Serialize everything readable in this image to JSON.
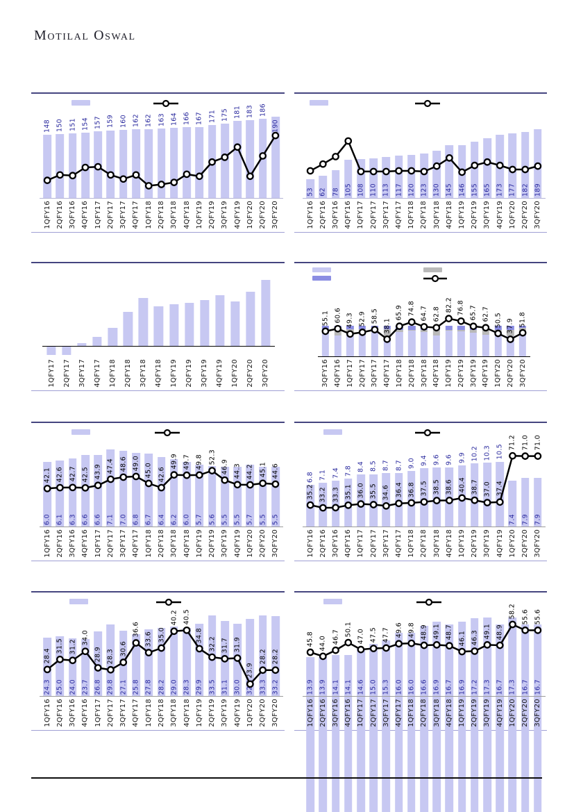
{
  "brand": {
    "title": "Motilal Oswal"
  },
  "colors": {
    "bar_light": "#c7c8f2",
    "bar_dark": "#8b8de3",
    "bar_gray": "#b9b9b9",
    "line": "#000000",
    "bar_label": "#2a2a9e",
    "line_label": "#000000",
    "panel_border_top": "#45457f",
    "panel_border_bottom": "#9f9fd4"
  },
  "chart_data": [
    {
      "type": "bar",
      "position": "row1-left",
      "categories": [
        "1QFY16",
        "2QFY16",
        "3QFY16",
        "4QFY16",
        "1QFY17",
        "2QFY17",
        "3QFY17",
        "4QFY17",
        "1QFY18",
        "2QFY18",
        "3QFY18",
        "4QFY18",
        "1QFY19",
        "2QFY19",
        "3QFY19",
        "4QFY19",
        "1QFY20",
        "2QFY20",
        "3QFY20"
      ],
      "bars": {
        "values": [
          148,
          150,
          151,
          154,
          157,
          159,
          160,
          162,
          162,
          163,
          164,
          166,
          167,
          171,
          175,
          181,
          183,
          186,
          190
        ],
        "range": [
          0,
          205
        ],
        "label_mode": "above",
        "label_decimals": 0,
        "label_overrides": {
          "18": "inside-top"
        }
      },
      "line": {
        "values_est": [
          27,
          35,
          34,
          46,
          47,
          35,
          29,
          35,
          19,
          21,
          24,
          36,
          33,
          54,
          61,
          76,
          33,
          63,
          93
        ],
        "range": [
          0,
          130
        ],
        "show_labels": false,
        "note": "line values unlabeled in source; estimated relative scale"
      },
      "legend": "bar-line",
      "legend_labels": [
        "",
        ""
      ]
    },
    {
      "type": "bar",
      "position": "row1-right",
      "categories": [
        "1QFY16",
        "2QFY16",
        "3QFY16",
        "4QFY16",
        "1QFY17",
        "2QFY17",
        "3QFY17",
        "4QFY17",
        "1QFY18",
        "2QFY18",
        "3QFY18",
        "4QFY18",
        "1QFY19",
        "2QFY19",
        "3QFY19",
        "4QFY19",
        "1QFY20",
        "2QFY20",
        "3QFY20"
      ],
      "bars": {
        "values": [
          53,
          62,
          78,
          105,
          108,
          110,
          113,
          117,
          120,
          123,
          130,
          145,
          146,
          155,
          165,
          173,
          177,
          182,
          189
        ],
        "range": [
          0,
          240
        ],
        "label_mode": "inside-bottom",
        "label_decimals": 0
      },
      "line": {
        "values_est": [
          41,
          51,
          62,
          85,
          40,
          40,
          40,
          41,
          41,
          40,
          48,
          60,
          39,
          49,
          54,
          49,
          43,
          43,
          48
        ],
        "range": [
          0,
          130
        ],
        "show_labels": false,
        "note": "line values unlabeled in source; estimated relative scale"
      },
      "legend": "bar-line",
      "legend_labels": [
        "",
        ""
      ]
    },
    {
      "type": "bar",
      "position": "row2-left",
      "categories": [
        "1QFY17",
        "2QFY17",
        "3QFY17",
        "4QFY17",
        "1QFY18",
        "2QFY18",
        "3QFY18",
        "4QFY18",
        "1QFY19",
        "2QFY19",
        "3QFY19",
        "4QFY19",
        "1QFY20",
        "2QFY20",
        "3QFY20"
      ],
      "bars": {
        "values": [
          -10,
          -10,
          5,
          13,
          24,
          45,
          63,
          52,
          55,
          56,
          60,
          66,
          58,
          71,
          86
        ],
        "range": [
          -13,
          100
        ],
        "label_mode": "none",
        "note": "bar values unlabeled in source; estimated relative scale"
      },
      "line": null,
      "legend": "none",
      "legend_labels": []
    },
    {
      "type": "stacked-bar",
      "position": "row2-right",
      "categories": [
        "3QFY16",
        "4QFY16",
        "1QFY17",
        "2QFY17",
        "3QFY17",
        "4QFY17",
        "1QFY18",
        "2QFY18",
        "3QFY18",
        "4QFY18",
        "1QFY19",
        "2QFY19",
        "3QFY19",
        "4QFY19",
        "1QFY20",
        "2QFY20",
        "3QFY20"
      ],
      "stacks": {
        "note": "segment sizes unlabeled in source; estimated percent mix",
        "series": [
          {
            "name": "segment-light",
            "values": [
              75,
              68,
              78,
              78,
              80,
              66,
              80,
              84,
              80,
              70,
              84,
              82,
              78,
              72,
              80,
              66,
              72
            ]
          },
          {
            "name": "segment-gray",
            "values": [
              15,
              22,
              12,
              12,
              10,
              24,
              8,
              4,
              8,
              18,
              4,
              6,
              10,
              16,
              8,
              22,
              22
            ]
          },
          {
            "name": "segment-dark",
            "values": [
              10,
              10,
              10,
              10,
              10,
              10,
              12,
              12,
              12,
              12,
              12,
              12,
              12,
              12,
              12,
              12,
              6
            ]
          }
        ],
        "range": [
          0,
          225
        ]
      },
      "line": {
        "values": [
          55.1,
          60.6,
          49.3,
          52.9,
          58.5,
          38.1,
          65.9,
          74.8,
          64.7,
          62.8,
          82.2,
          76.8,
          65.7,
          62.7,
          50.5,
          37.9,
          51.8
        ],
        "range": [
          0,
          150
        ],
        "show_labels": true,
        "label_decimals": 1
      },
      "legend": "stacked",
      "legend_labels": [
        "",
        "",
        "",
        ""
      ]
    },
    {
      "type": "bar",
      "position": "row3-left",
      "categories": [
        "1QFY16",
        "2QFY16",
        "3QFY16",
        "4QFY16",
        "1QFY17",
        "2QFY17",
        "3QFY17",
        "4QFY17",
        "1QFY18",
        "2QFY18",
        "3QFY18",
        "4QFY18",
        "1QFY19",
        "2QFY19",
        "3QFY19",
        "4QFY19",
        "1QFY20",
        "2QFY20",
        "3QFY20"
      ],
      "bars": {
        "values": [
          6.0,
          6.1,
          6.3,
          6.6,
          6.6,
          7.1,
          7.0,
          6.8,
          6.7,
          6.4,
          6.2,
          6.0,
          5.7,
          5.6,
          5.5,
          5.5,
          5.7,
          5.5,
          5.5
        ],
        "range": [
          0,
          8
        ],
        "label_mode": "inside-bottom",
        "label_decimals": 1
      },
      "line": {
        "values": [
          42.1,
          42.6,
          42.7,
          42.5,
          43.9,
          47.4,
          48.6,
          49.0,
          45.0,
          42.6,
          49.9,
          49.7,
          49.8,
          52.3,
          46.9,
          44.3,
          44.2,
          45.1,
          44.6
        ],
        "range": [
          20,
          70
        ],
        "show_labels": true,
        "label_decimals": 1
      },
      "legend": "bar-line",
      "legend_labels": [
        "",
        ""
      ]
    },
    {
      "type": "bar",
      "position": "row3-right",
      "categories": [
        "1QFY16",
        "2QFY16",
        "3QFY16",
        "4QFY16",
        "1QFY17",
        "2QFY17",
        "3QFY17",
        "4QFY17",
        "1QFY18",
        "2QFY18",
        "3QFY18",
        "4QFY18",
        "1QFY19",
        "2QFY19",
        "3QFY19",
        "4QFY19",
        "1QFY20",
        "2QFY20",
        "3QFY20"
      ],
      "bars": {
        "values": [
          6.8,
          7.1,
          7.4,
          7.8,
          8.4,
          8.5,
          8.7,
          8.7,
          9.0,
          9.4,
          9.6,
          9.6,
          9.9,
          10.2,
          10.3,
          10.5,
          7.4,
          7.9,
          7.9
        ],
        "range": [
          0,
          14
        ],
        "label_mode": "above",
        "label_decimals": 1,
        "label_overrides": {
          "16": "inside-bottom",
          "17": "inside-bottom",
          "18": "inside-bottom"
        }
      },
      "line": {
        "values": [
          35.2,
          33.2,
          33.3,
          35.1,
          36.0,
          35.5,
          34.6,
          36.4,
          36.8,
          37.5,
          38.5,
          38.6,
          40.4,
          38.7,
          37.0,
          37.4,
          71.2,
          71.0,
          71.0
        ],
        "range": [
          19,
          83
        ],
        "show_labels": true,
        "label_decimals": 1
      },
      "legend": "bar-line",
      "legend_labels": [
        "",
        ""
      ]
    },
    {
      "type": "bar",
      "position": "row4-left",
      "categories": [
        "1QFY16",
        "2QFY16",
        "3QFY16",
        "4QFY16",
        "1QFY17",
        "2QFY17",
        "3QFY17",
        "4QFY17",
        "1QFY18",
        "2QFY18",
        "3QFY18",
        "4QFY18",
        "1QFY19",
        "2QFY19",
        "3QFY19",
        "4QFY19",
        "1QFY20",
        "2QFY20",
        "3QFY20"
      ],
      "bars": {
        "values": [
          24.3,
          25.0,
          24.0,
          23.7,
          26.8,
          29.8,
          27.1,
          25.8,
          27.8,
          28.2,
          29.0,
          28.3,
          29.9,
          33.5,
          31.1,
          30.0,
          32.1,
          33.3,
          33.2
        ],
        "range": [
          0,
          36
        ],
        "label_mode": "inside-bottom",
        "label_decimals": 1
      },
      "line": {
        "values": [
          28.4,
          31.5,
          31.2,
          34.0,
          28.9,
          28.3,
          30.6,
          36.6,
          33.6,
          35.0,
          40.2,
          40.5,
          34.8,
          32.2,
          31.7,
          31.9,
          23.9,
          28.2,
          28.2
        ],
        "range": [
          20,
          47
        ],
        "show_labels": true,
        "label_decimals": 1
      },
      "legend": "bar-line",
      "legend_labels": [
        "",
        ""
      ]
    },
    {
      "type": "bar",
      "position": "row4-right",
      "categories": [
        "1QFY16",
        "2QFY16",
        "3QFY16",
        "4QFY16",
        "1QFY17",
        "2QFY17",
        "3QFY17",
        "4QFY17",
        "1QFY18",
        "2QFY18",
        "3QFY18",
        "4QFY18",
        "1QFY19",
        "2QFY19",
        "3QFY19",
        "4QFY19",
        "1QFY20",
        "2QFY20",
        "3QFY20"
      ],
      "bars": {
        "values": [
          13.9,
          13.9,
          14.1,
          14.1,
          14.6,
          15.0,
          15.3,
          16.0,
          16.0,
          16.6,
          16.9,
          16.7,
          16.9,
          17.2,
          17.3,
          16.7,
          17.3,
          16.7,
          16.7
        ],
        "range": [
          10.5,
          18
        ],
        "label_mode": "inside-bottom",
        "label_decimals": 1
      },
      "line": {
        "values": [
          45.8,
          44.0,
          46.7,
          50.1,
          47.0,
          47.5,
          47.7,
          49.6,
          49.8,
          48.9,
          49.1,
          48.7,
          46.1,
          46.3,
          49.1,
          48.9,
          58.2,
          55.6,
          55.6
        ],
        "range": [
          26,
          65
        ],
        "show_labels": true,
        "label_decimals": 1
      },
      "legend": "bar-line",
      "legend_labels": [
        "",
        ""
      ]
    }
  ]
}
